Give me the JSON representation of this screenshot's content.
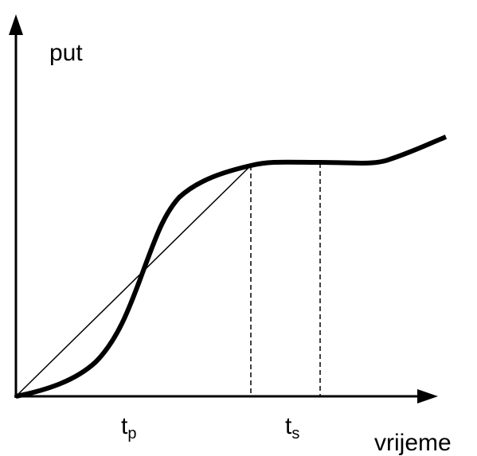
{
  "axes": {
    "y_label": "put",
    "x_label": "vrijeme"
  },
  "markers": [
    {
      "symbol": "t",
      "subscript": "p"
    },
    {
      "symbol": "t",
      "subscript": "s"
    }
  ]
}
